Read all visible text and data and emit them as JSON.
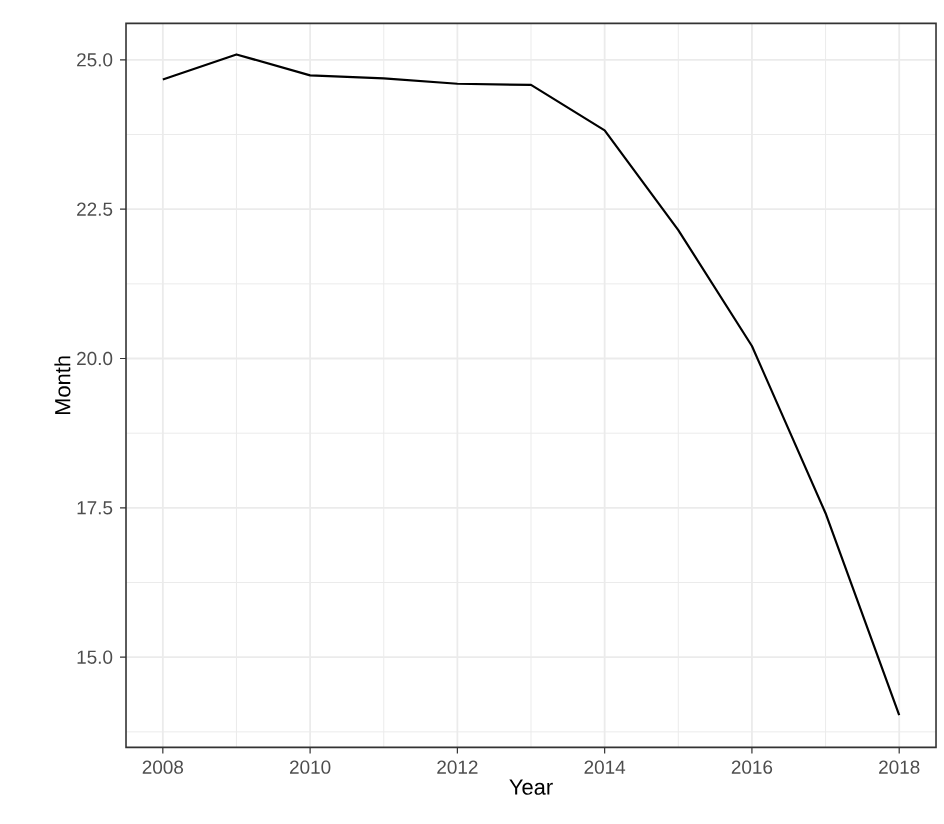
{
  "chart_data": {
    "type": "line",
    "xlabel": "Year",
    "ylabel": "Month",
    "x": [
      2008,
      2009,
      2010,
      2011,
      2012,
      2013,
      2014,
      2015,
      2016,
      2017,
      2018
    ],
    "series": [
      {
        "color": "#000000",
        "values": [
          24.67,
          25.09,
          24.74,
          24.69,
          24.6,
          24.58,
          23.82,
          22.15,
          20.21,
          17.41,
          14.03
        ]
      }
    ],
    "xlim": [
      2007.5,
      2018.5
    ],
    "ylim": [
      13.49,
      25.61
    ],
    "xticks": [
      2008,
      2010,
      2012,
      2014,
      2016,
      2018
    ],
    "yticks": [
      {
        "value": 15,
        "label": "15.0"
      },
      {
        "value": 17.5,
        "label": "17.5"
      },
      {
        "value": 20,
        "label": "20.0"
      },
      {
        "value": 22.5,
        "label": "22.5"
      },
      {
        "value": 25,
        "label": "25.0"
      }
    ],
    "grid": true
  }
}
